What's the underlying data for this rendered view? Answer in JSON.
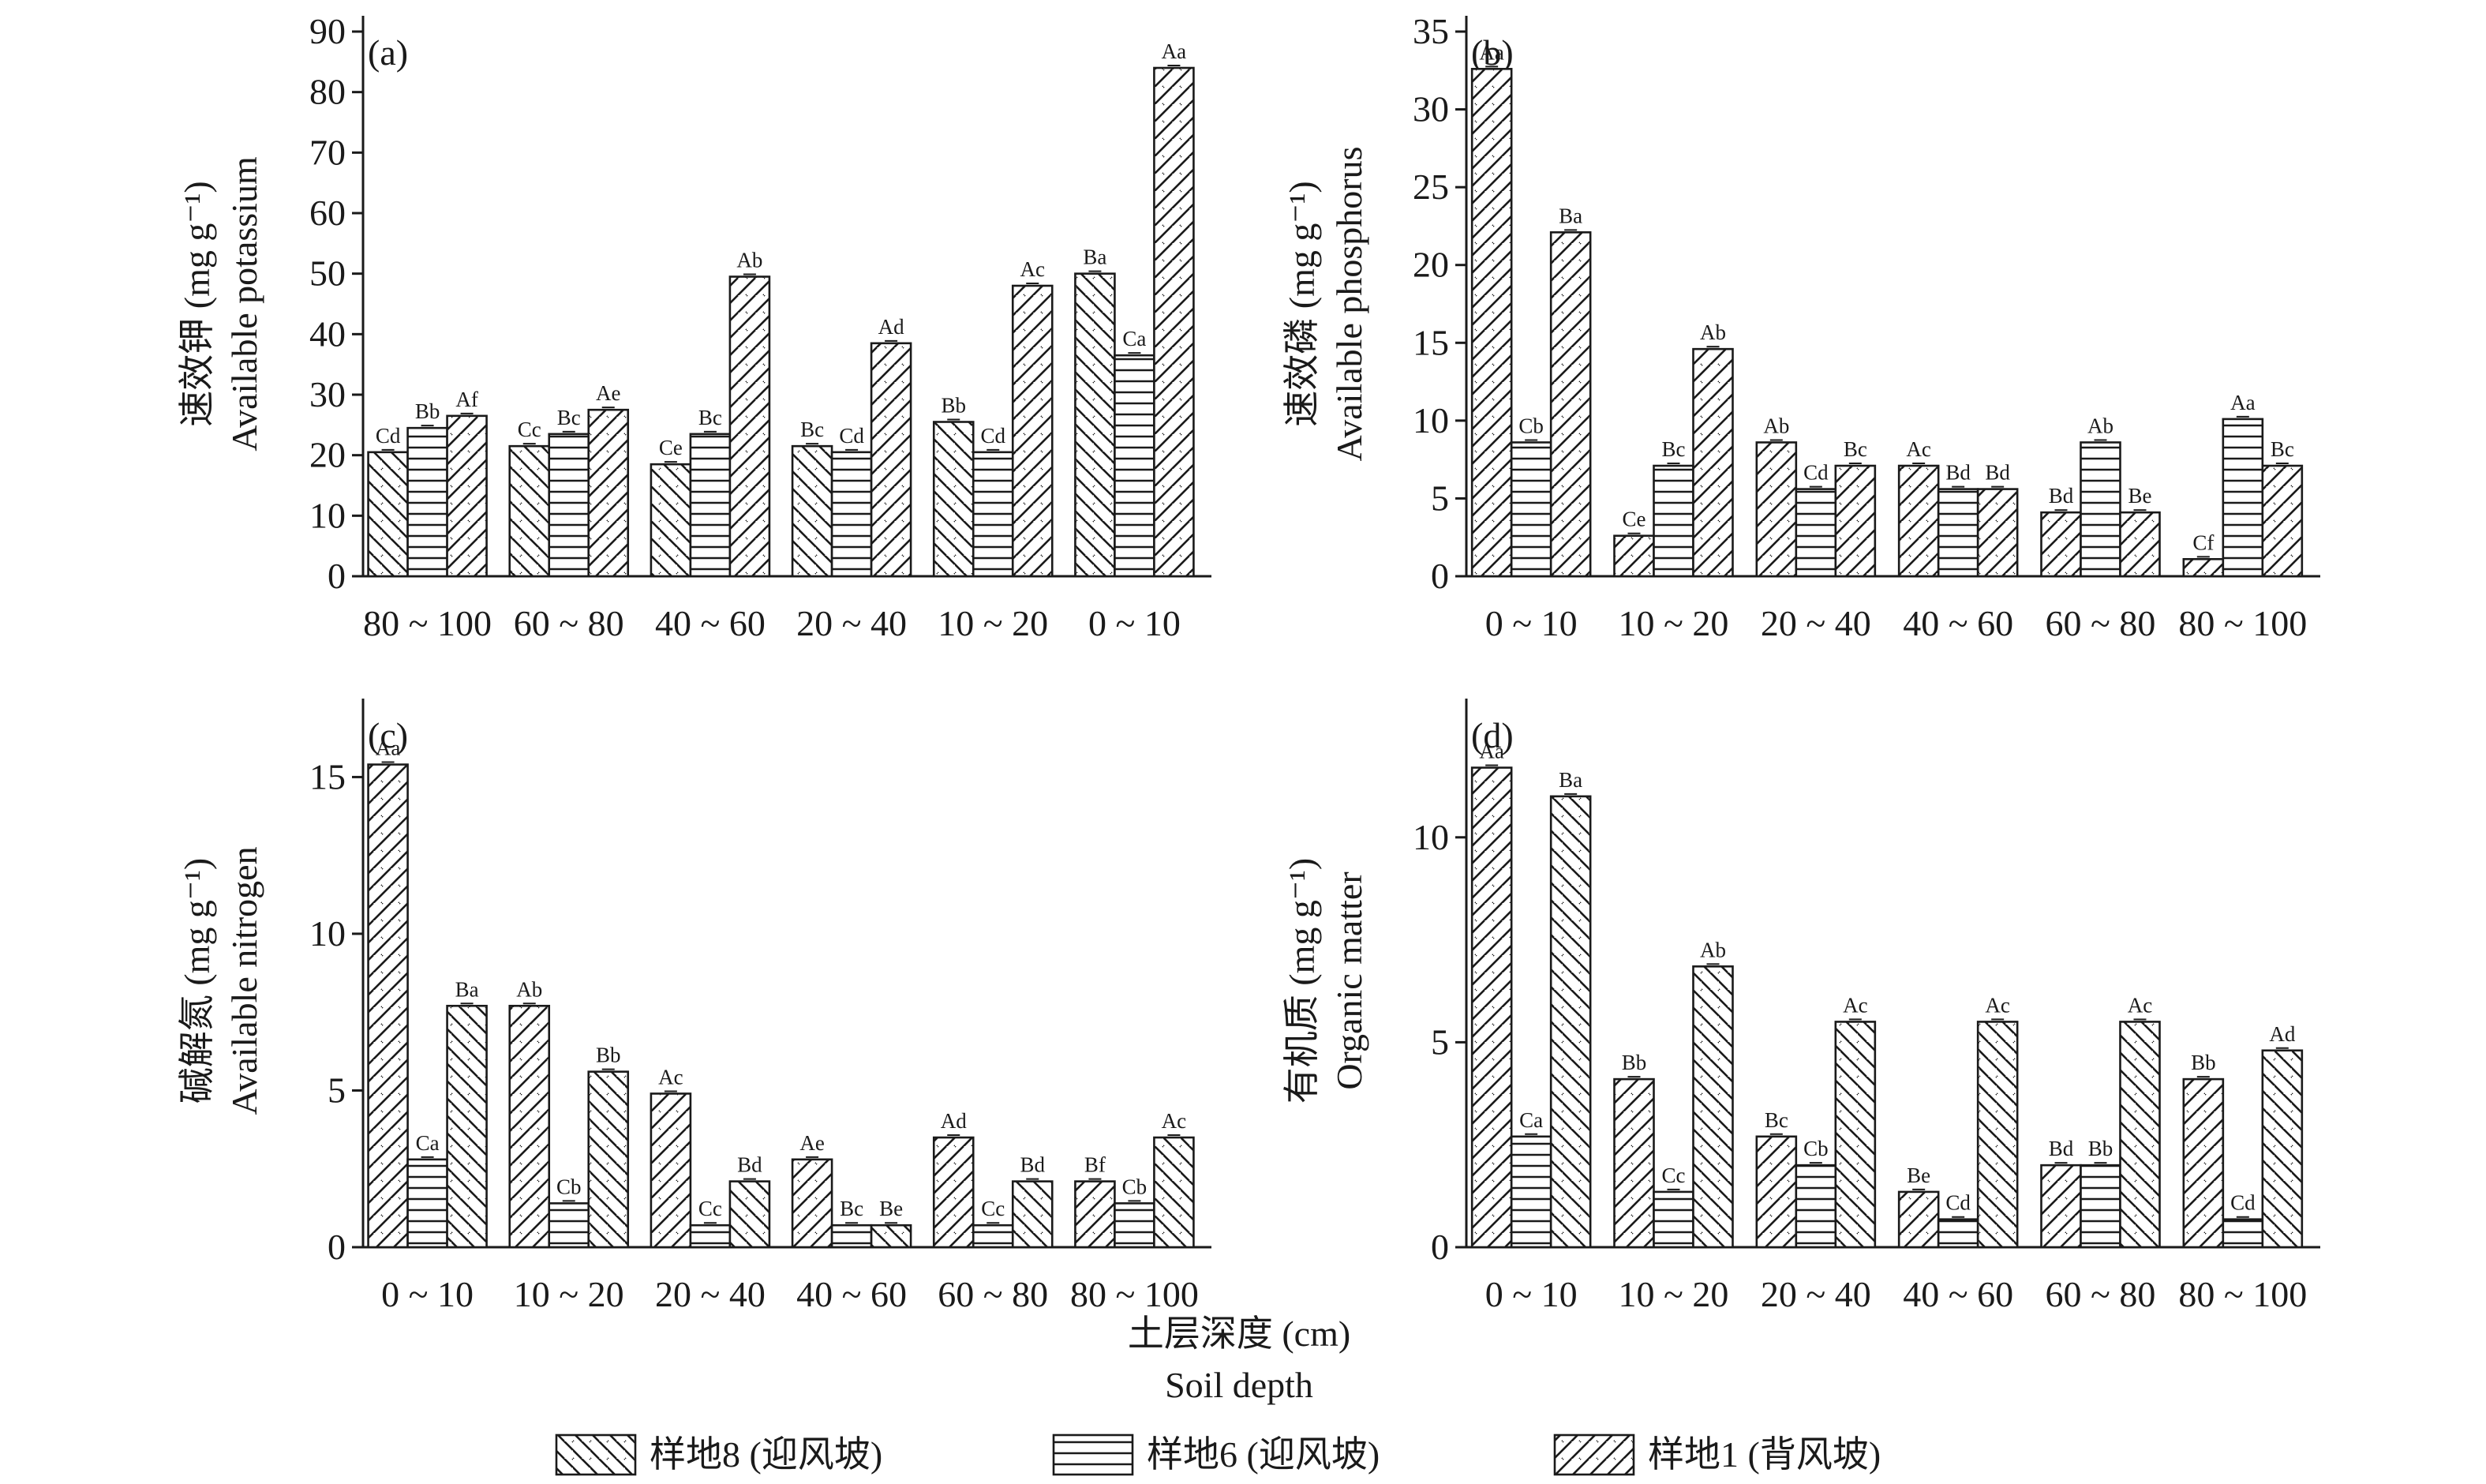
{
  "colors": {
    "ink": "#1a1a1a",
    "fill": "#ffffff"
  },
  "x_title": {
    "cn": "土层深度 (cm)",
    "en": "Soil depth"
  },
  "legend": [
    {
      "label": "样地8 (迎风坡)",
      "pattern": "diag-down"
    },
    {
      "label": "样地6 (迎风坡)",
      "pattern": "horizontal"
    },
    {
      "label": "样地1 (背风坡)",
      "pattern": "diag-up"
    }
  ],
  "chart_data": [
    {
      "id": "a",
      "type": "bar",
      "panel_label": "(a)",
      "ylabel_cn": "速效钾 (mg g⁻¹)",
      "ylabel_en": "Available potassium",
      "ylim": [
        0,
        90
      ],
      "yticks": [
        0,
        10,
        20,
        30,
        40,
        50,
        60,
        70,
        80,
        90
      ],
      "categories": [
        "80 ~ 100",
        "60 ~ 80",
        "40 ~ 60",
        "20 ~ 40",
        "10 ~ 20",
        "0 ~ 10"
      ],
      "category_labels": [
        "80 ~ 100",
        "60 ~ 80",
        "40 ~ 60",
        "20 ~ 40",
        "10 ~ 20",
        "0 ~ 10"
      ],
      "series": [
        {
          "name": "样地8 (迎风坡)",
          "pattern": "diag-down",
          "values": [
            20.5,
            21.5,
            18.5,
            21.5,
            25.5,
            50
          ],
          "labels": [
            "Cd",
            "Cc",
            "Ce",
            "Bc",
            "Bb",
            "Ba"
          ]
        },
        {
          "name": "样地6 (迎风坡)",
          "pattern": "horizontal",
          "values": [
            24.5,
            23.5,
            23.5,
            20.5,
            20.5,
            36.5
          ],
          "labels": [
            "Bb",
            "Bc",
            "Bc",
            "Cd",
            "Cd",
            "Ca"
          ]
        },
        {
          "name": "样地1 (背风坡)",
          "pattern": "diag-up",
          "values": [
            26.5,
            27.5,
            49.5,
            38.5,
            48,
            84
          ],
          "labels": [
            "Af",
            "Ae",
            "Ab",
            "Ad",
            "Ac",
            "Aa"
          ]
        }
      ]
    },
    {
      "id": "b",
      "type": "bar",
      "panel_label": "(b)",
      "ylabel_cn": "速效磷 (mg g⁻¹)",
      "ylabel_en": "Available phosphorus",
      "ylim": [
        0,
        35
      ],
      "yticks": [
        0,
        5,
        10,
        15,
        20,
        25,
        30,
        35
      ],
      "categories": [
        "0 ~ 10",
        "10 ~ 20",
        "20 ~ 40",
        "40 ~ 60",
        "60 ~ 80",
        "80 ~ 100"
      ],
      "category_labels": [
        "0 ~ 10",
        "10 ~ 20",
        "20 ~ 40",
        "40 ~ 60",
        "60 ~ 80",
        "80 ~ 100"
      ],
      "series": [
        {
          "name": "样地8 (迎风坡)",
          "pattern": "diag-up",
          "values": [
            32.6,
            2.6,
            8.6,
            7.1,
            4.1,
            1.1
          ],
          "labels": [
            "Aa",
            "Ce",
            "Ab",
            "Ac",
            "Bd",
            "Cf"
          ]
        },
        {
          "name": "样地6 (迎风坡)",
          "pattern": "horizontal",
          "values": [
            8.6,
            7.1,
            5.6,
            5.6,
            8.6,
            10.1
          ],
          "labels": [
            "Cb",
            "Bc",
            "Cd",
            "Bd",
            "Ab",
            "Aa"
          ]
        },
        {
          "name": "样地1 (背风坡)",
          "pattern": "diag-up",
          "values": [
            22.1,
            14.6,
            7.1,
            5.6,
            4.1,
            7.1
          ],
          "labels": [
            "Ba",
            "Ab",
            "Bc",
            "Bd",
            "Be",
            "Bc"
          ]
        }
      ]
    },
    {
      "id": "c",
      "type": "bar",
      "panel_label": "(c)",
      "ylabel_cn": "碱解氮 (mg g⁻¹)",
      "ylabel_en": "Available nitrogen",
      "ylim": [
        0,
        17
      ],
      "yticks": [
        0,
        5,
        10,
        15
      ],
      "categories": [
        "0 ~ 10",
        "10 ~ 20",
        "20 ~ 40",
        "40 ~ 60",
        "60 ~ 80",
        "80 ~ 100"
      ],
      "category_labels": [
        "0 ~ 10",
        "10 ~ 20",
        "20 ~ 40",
        "40 ~ 60",
        "60 ~ 80",
        "80 ~ 100"
      ],
      "series": [
        {
          "name": "样地8 (迎风坡)",
          "pattern": "diag-up",
          "values": [
            15.4,
            7.7,
            4.9,
            2.8,
            3.5,
            2.1
          ],
          "labels": [
            "Aa",
            "Ab",
            "Ac",
            "Ae",
            "Ad",
            "Bf"
          ]
        },
        {
          "name": "样地6 (迎风坡)",
          "pattern": "horizontal",
          "values": [
            2.8,
            1.4,
            0.7,
            0.7,
            0.7,
            1.4
          ],
          "labels": [
            "Ca",
            "Cb",
            "Cc",
            "Bc",
            "Cc",
            "Cb"
          ]
        },
        {
          "name": "样地1 (背风坡)",
          "pattern": "diag-down",
          "values": [
            7.7,
            5.6,
            2.1,
            0.7,
            2.1,
            3.5
          ],
          "labels": [
            "Ba",
            "Bb",
            "Bd",
            "Be",
            "Bd",
            "Ac"
          ]
        }
      ]
    },
    {
      "id": "d",
      "type": "bar",
      "panel_label": "(d)",
      "ylabel_cn": "有机质 (mg g⁻¹)",
      "ylabel_en": "Organic matter",
      "ylim": [
        0,
        13
      ],
      "yticks": [
        0,
        5,
        10
      ],
      "categories": [
        "0 ~ 10",
        "10 ~ 20",
        "20 ~ 40",
        "40 ~ 60",
        "60 ~ 80",
        "80 ~ 100"
      ],
      "category_labels": [
        "0 ~ 10",
        "10 ~ 20",
        "20 ~ 40",
        "40 ~ 60",
        "60 ~ 80",
        "80 ~ 100"
      ],
      "series": [
        {
          "name": "样地8 (迎风坡)",
          "pattern": "diag-up",
          "values": [
            11.7,
            4.1,
            2.7,
            1.35,
            2.0,
            4.1
          ],
          "labels": [
            "Aa",
            "Bb",
            "Bc",
            "Be",
            "Bd",
            "Bb"
          ]
        },
        {
          "name": "样地6 (迎风坡)",
          "pattern": "horizontal",
          "values": [
            2.7,
            1.35,
            2.0,
            0.68,
            2.0,
            0.68
          ],
          "labels": [
            "Ca",
            "Cc",
            "Cb",
            "Cd",
            "Bb",
            "Cd"
          ]
        },
        {
          "name": "样地1 (背风坡)",
          "pattern": "diag-down",
          "values": [
            11.0,
            6.85,
            5.5,
            5.5,
            5.5,
            4.8
          ],
          "labels": [
            "Ba",
            "Ab",
            "Ac",
            "Ac",
            "Ac",
            "Ad"
          ]
        }
      ]
    }
  ]
}
